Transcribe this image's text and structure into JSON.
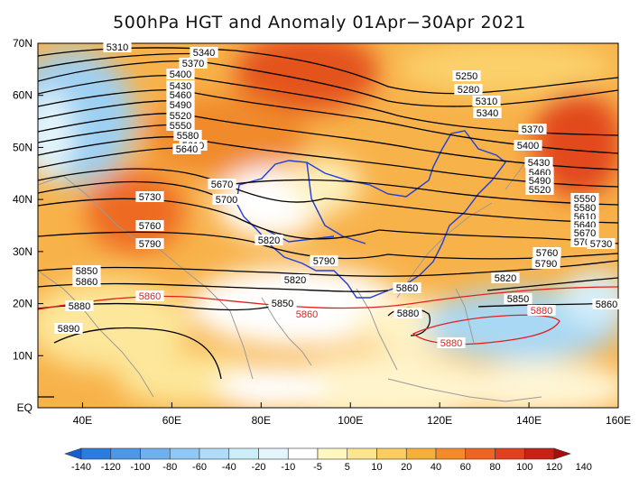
{
  "title": "500hPa HGT and Anomaly 01Apr−30Apr 2021",
  "lat_labels": [
    "70N",
    "60N",
    "50N",
    "40N",
    "30N",
    "20N",
    "10N",
    "EQ"
  ],
  "lon_labels": [
    "40E",
    "60E",
    "80E",
    "100E",
    "120E",
    "140E",
    "160E"
  ],
  "colorbar": {
    "labels": [
      "-140",
      "-120",
      "-100",
      "-80",
      "-60",
      "-40",
      "-20",
      "-10",
      "-5",
      "5",
      "10",
      "20",
      "40",
      "60",
      "80",
      "100",
      "120",
      "140"
    ],
    "colors": [
      "#1560d0",
      "#2a7de0",
      "#4b97ea",
      "#6eb0f0",
      "#90c8f5",
      "#b0dcf8",
      "#cceefa",
      "#e4f6fb",
      "#ffffff",
      "#fff7c0",
      "#fde58c",
      "#fbcd5e",
      "#f8ae3a",
      "#f48a2a",
      "#ee6422",
      "#e0401c",
      "#c82016",
      "#a80e0e"
    ]
  },
  "contour_labels": [
    {
      "text": "5310",
      "color": "black"
    },
    {
      "text": "5340",
      "color": "black"
    },
    {
      "text": "5370",
      "color": "black"
    },
    {
      "text": "5400",
      "color": "black"
    },
    {
      "text": "5430",
      "color": "black"
    },
    {
      "text": "5460",
      "color": "black"
    },
    {
      "text": "5490",
      "color": "black"
    },
    {
      "text": "5520",
      "color": "black"
    },
    {
      "text": "5550",
      "color": "black"
    },
    {
      "text": "5580",
      "color": "black"
    },
    {
      "text": "5610",
      "color": "black"
    },
    {
      "text": "5640",
      "color": "black"
    },
    {
      "text": "5670",
      "color": "black"
    },
    {
      "text": "5700",
      "color": "black"
    },
    {
      "text": "5730",
      "color": "black"
    },
    {
      "text": "5760",
      "color": "black"
    },
    {
      "text": "5790",
      "color": "black"
    },
    {
      "text": "5820",
      "color": "black"
    },
    {
      "text": "5850",
      "color": "black"
    },
    {
      "text": "5860",
      "color": "black"
    },
    {
      "text": "5880",
      "color": "black"
    },
    {
      "text": "5890",
      "color": "black"
    },
    {
      "text": "5860",
      "color": "red"
    },
    {
      "text": "5860",
      "color": "red"
    },
    {
      "text": "5880",
      "color": "red"
    },
    {
      "text": "5880",
      "color": "red"
    },
    {
      "text": "5860",
      "color": "black"
    },
    {
      "text": "5790",
      "color": "black"
    },
    {
      "text": "5820",
      "color": "black"
    },
    {
      "text": "5850",
      "color": "black"
    },
    {
      "text": "5880",
      "color": "black"
    },
    {
      "text": "5760",
      "color": "black"
    },
    {
      "text": "5250",
      "color": "black"
    },
    {
      "text": "5280",
      "color": "black"
    },
    {
      "text": "5310",
      "color": "black"
    },
    {
      "text": "5340",
      "color": "black"
    },
    {
      "text": "5370",
      "color": "black"
    },
    {
      "text": "5400",
      "color": "black"
    },
    {
      "text": "5430",
      "color": "black"
    },
    {
      "text": "5460",
      "color": "black"
    },
    {
      "text": "5490",
      "color": "black"
    },
    {
      "text": "5520",
      "color": "black"
    },
    {
      "text": "5550",
      "color": "black"
    },
    {
      "text": "5580",
      "color": "black"
    },
    {
      "text": "5610",
      "color": "black"
    },
    {
      "text": "5640",
      "color": "black"
    },
    {
      "text": "5670",
      "color": "black"
    },
    {
      "text": "5700",
      "color": "black"
    },
    {
      "text": "5730",
      "color": "black"
    },
    {
      "text": "5760",
      "color": "black"
    },
    {
      "text": "5790",
      "color": "black"
    },
    {
      "text": "5820",
      "color": "black"
    },
    {
      "text": "5850",
      "color": "black"
    },
    {
      "text": "5860",
      "color": "black"
    }
  ]
}
